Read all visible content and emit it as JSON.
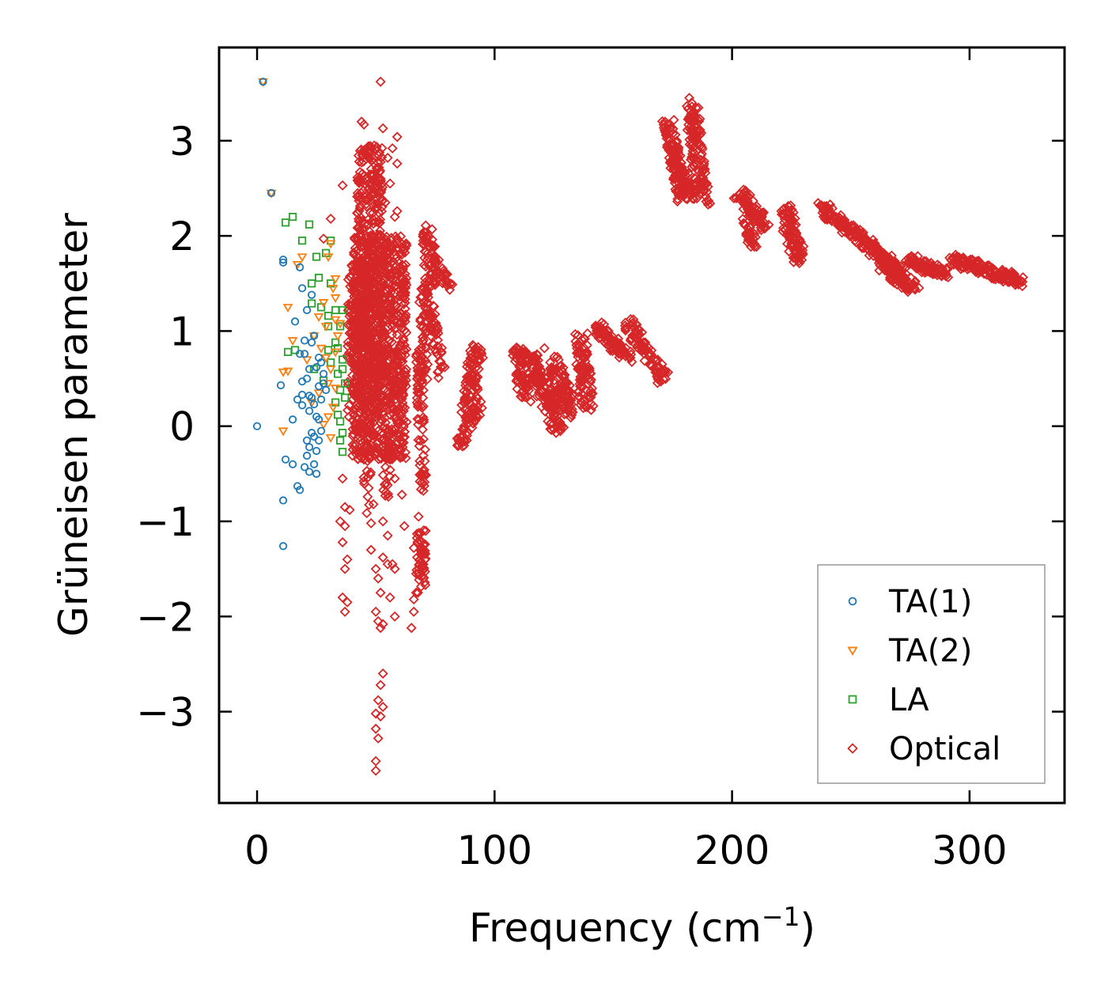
{
  "chart_data": {
    "type": "scatter",
    "title": "",
    "xlabel": "Frequency (cm",
    "xlabel_sup": "−1",
    "xlabel_suffix": ")",
    "ylabel": "Grüneisen parameter",
    "xlim": [
      -16,
      340
    ],
    "ylim": [
      -3.96,
      3.98
    ],
    "xticks": [
      0,
      100,
      200,
      300
    ],
    "xtick_labels": [
      "0",
      "100",
      "200",
      "300"
    ],
    "yticks": [
      -3,
      -2,
      -1,
      0,
      1,
      2,
      3
    ],
    "ytick_labels": [
      "−3",
      "−2",
      "−1",
      "0",
      "1",
      "2",
      "3"
    ],
    "legend_position": "lower-right",
    "series": [
      {
        "name": "TA(1)",
        "marker": "circle",
        "color": "#1f77b4",
        "points": [
          [
            2.5,
            3.62
          ],
          [
            6,
            2.45
          ],
          [
            0,
            0
          ],
          [
            11,
            1.75
          ],
          [
            11,
            1.72
          ],
          [
            16,
            1.1
          ],
          [
            18,
            1.67
          ],
          [
            19,
            1.45
          ],
          [
            21,
            1.22
          ],
          [
            23,
            1.38
          ],
          [
            15,
            0.07
          ],
          [
            10,
            0.43
          ],
          [
            11,
            -0.78
          ],
          [
            11,
            -1.26
          ],
          [
            12,
            -0.35
          ],
          [
            15,
            -0.4
          ],
          [
            17,
            -0.63
          ],
          [
            18,
            -0.67
          ],
          [
            17,
            0.28
          ],
          [
            19,
            0.22
          ],
          [
            19,
            0.47
          ],
          [
            21,
            0.5
          ],
          [
            22,
            0.32
          ],
          [
            22,
            0.16
          ],
          [
            23,
            -0.07
          ],
          [
            21,
            -0.15
          ],
          [
            21,
            -0.31
          ],
          [
            22,
            -0.48
          ],
          [
            25,
            -0.5
          ],
          [
            24,
            -0.4
          ],
          [
            25,
            -0.26
          ],
          [
            26,
            -0.15
          ],
          [
            25,
            0.1
          ],
          [
            27,
            0.28
          ],
          [
            28,
            0.45
          ],
          [
            26,
            0.72
          ],
          [
            24,
            0.95
          ],
          [
            22,
            0.6
          ],
          [
            20,
            0.76
          ],
          [
            23,
            0.88
          ],
          [
            25,
            0.62
          ],
          [
            20,
            -0.43
          ],
          [
            28,
            0.55
          ],
          [
            24,
            0.23
          ],
          [
            26,
            0.42
          ],
          [
            23,
            0.3
          ],
          [
            26,
            0.07
          ],
          [
            27,
            -0.05
          ],
          [
            22,
            -0.22
          ],
          [
            24,
            -0.11
          ],
          [
            19,
            0.33
          ],
          [
            29,
            0.38
          ],
          [
            20,
            0.9
          ],
          [
            18,
            0.76
          ],
          [
            27,
            0.67
          ]
        ]
      },
      {
        "name": "TA(2)",
        "marker": "triangle-down",
        "color": "#ff7f0e",
        "points": [
          [
            2.5,
            3.62
          ],
          [
            6,
            2.45
          ],
          [
            17,
            1.7
          ],
          [
            19,
            1.78
          ],
          [
            13,
            1.25
          ],
          [
            15,
            0.9
          ],
          [
            11,
            0.57
          ],
          [
            13,
            0.58
          ],
          [
            11,
            -0.05
          ],
          [
            21,
            0.7
          ],
          [
            24,
            0.95
          ],
          [
            26,
            1.15
          ],
          [
            28,
            1.3
          ],
          [
            30,
            1.78
          ],
          [
            31,
            1.92
          ],
          [
            33,
            1.55
          ],
          [
            33,
            1.35
          ],
          [
            33,
            1.12
          ],
          [
            34,
            0.95
          ],
          [
            33,
            0.78
          ],
          [
            31,
            0.6
          ],
          [
            33,
            0.4
          ],
          [
            32,
            0.2
          ],
          [
            30,
            0.1
          ],
          [
            31,
            -0.12
          ],
          [
            28,
            0.02
          ],
          [
            26,
            0.35
          ],
          [
            23,
            0.25
          ],
          [
            27,
            0.82
          ],
          [
            29,
            1.05
          ],
          [
            32,
            1.45
          ],
          [
            35,
            1.08
          ],
          [
            30,
            0.45
          ],
          [
            29,
            0.72
          ]
        ]
      },
      {
        "name": "LA",
        "marker": "square",
        "color": "#2ca02c",
        "points": [
          [
            12,
            2.14
          ],
          [
            15,
            2.2
          ],
          [
            22,
            2.12
          ],
          [
            19,
            1.95
          ],
          [
            25,
            1.78
          ],
          [
            26,
            1.56
          ],
          [
            23,
            1.5
          ],
          [
            13,
            0.78
          ],
          [
            16,
            0.8
          ],
          [
            23,
            1.29
          ],
          [
            27,
            1.25
          ],
          [
            30,
            1.05
          ],
          [
            33,
            1.22
          ],
          [
            36,
            1.22
          ],
          [
            35,
            1.05
          ],
          [
            33,
            0.88
          ],
          [
            36,
            0.7
          ],
          [
            34,
            0.55
          ],
          [
            35,
            0.38
          ],
          [
            33,
            0.25
          ],
          [
            34,
            0.12
          ],
          [
            36,
            -0.07
          ],
          [
            35,
            -0.15
          ],
          [
            36,
            -0.27
          ],
          [
            28,
            0.48
          ],
          [
            24,
            0.6
          ],
          [
            30,
            0.8
          ],
          [
            37,
            0.45
          ],
          [
            36,
            0.6
          ],
          [
            31,
            1.5
          ],
          [
            29,
            1.82
          ],
          [
            31,
            1.95
          ],
          [
            30,
            1.16
          ],
          [
            31,
            0.67
          ],
          [
            34,
            0.82
          ],
          [
            37,
            0.3
          ],
          [
            35,
            0.05
          ]
        ]
      },
      {
        "name": "Optical",
        "marker": "diamond",
        "color": "#d62728",
        "generator": "bands",
        "explicit_points": [
          [
            52,
            3.62
          ],
          [
            44,
            3.2
          ],
          [
            45,
            3.17
          ],
          [
            53,
            3.13
          ],
          [
            55,
            2.82
          ],
          [
            57,
            2.92
          ],
          [
            59,
            3.04
          ],
          [
            59,
            2.76
          ],
          [
            56,
            2.55
          ],
          [
            59,
            2.26
          ],
          [
            36,
            2.53
          ],
          [
            31,
            2.18
          ],
          [
            28,
            1.97
          ],
          [
            45,
            2.9
          ],
          [
            43,
            2.78
          ],
          [
            47,
            2.55
          ],
          [
            52,
            2.6
          ],
          [
            54,
            2.35
          ],
          [
            58,
            2.2
          ],
          [
            63,
            1.9
          ],
          [
            36,
            -0.55
          ],
          [
            37,
            -0.85
          ],
          [
            39,
            -0.88
          ],
          [
            35,
            -1.0
          ],
          [
            37,
            -1.05
          ],
          [
            36,
            -1.22
          ],
          [
            38,
            -1.4
          ],
          [
            37,
            -1.5
          ],
          [
            38,
            -1.85
          ],
          [
            36,
            -1.8
          ],
          [
            37,
            -1.95
          ],
          [
            47,
            -0.65
          ],
          [
            49,
            -0.82
          ],
          [
            48,
            -1.3
          ],
          [
            50,
            -1.5
          ],
          [
            51,
            -1.6
          ],
          [
            52,
            -1.75
          ],
          [
            50,
            -1.95
          ],
          [
            51,
            -2.05
          ],
          [
            52,
            -2.12
          ],
          [
            53,
            -2.08
          ],
          [
            55,
            -1.45
          ],
          [
            57,
            -1.45
          ],
          [
            58,
            -1.5
          ],
          [
            53,
            -2.6
          ],
          [
            52,
            -2.72
          ],
          [
            51,
            -2.88
          ],
          [
            53,
            -2.95
          ],
          [
            50,
            -3.02
          ],
          [
            52,
            -3.05
          ],
          [
            50,
            -3.18
          ],
          [
            51,
            -3.28
          ],
          [
            50,
            -3.52
          ],
          [
            50,
            -3.62
          ],
          [
            48,
            -1.02
          ],
          [
            53,
            -1.0
          ],
          [
            55,
            -1.15
          ],
          [
            53,
            -1.38
          ],
          [
            56,
            -1.8
          ],
          [
            58,
            -2.0
          ],
          [
            45,
            -0.35
          ],
          [
            48,
            -0.2
          ],
          [
            56,
            -0.35
          ],
          [
            58,
            -0.55
          ],
          [
            61,
            -0.72
          ],
          [
            62,
            -1.05
          ],
          [
            55,
            -0.62
          ],
          [
            65,
            -2.12
          ],
          [
            66,
            -1.95
          ],
          [
            66,
            -1.82
          ],
          [
            67,
            -1.75
          ],
          [
            70,
            -1.6
          ],
          [
            69,
            -1.35
          ],
          [
            71,
            -1.1
          ],
          [
            68,
            -0.95
          ],
          [
            69,
            -1.22
          ],
          [
            70,
            -1.45
          ],
          [
            67,
            -1.55
          ],
          [
            66,
            -1.28
          ],
          [
            121,
            0.82
          ],
          [
            170,
            0.47
          ],
          [
            320,
            1.53
          ],
          [
            182,
            3.45
          ],
          [
            183,
            3.4
          ]
        ],
        "bands": [
          {
            "xmin": 40,
            "xmax": 63,
            "ymin": -0.35,
            "ymax": 2.0,
            "n": 900
          },
          {
            "xmin": 42,
            "xmax": 53,
            "ymin": 0.3,
            "ymax": 2.95,
            "n": 380
          },
          {
            "xmin": 38,
            "xmax": 48,
            "ymin": 0.0,
            "ymax": 1.7,
            "n": 180
          },
          {
            "x0": 47,
            "y0": -0.1,
            "x1": 46,
            "y1": -0.9,
            "w": 3,
            "n": 18
          },
          {
            "x0": 55,
            "y0": -0.2,
            "x1": 54,
            "y1": -0.8,
            "w": 3,
            "n": 16
          },
          {
            "x0": 68,
            "y0": 0.8,
            "x1": 70,
            "y1": -0.7,
            "w": 3,
            "n": 70
          },
          {
            "x0": 69,
            "y0": -1.1,
            "x1": 69,
            "y1": -1.7,
            "w": 4,
            "n": 50
          },
          {
            "x0": 72,
            "y0": 2.08,
            "x1": 73,
            "y1": 1.45,
            "w": 5,
            "n": 60
          },
          {
            "x0": 70,
            "y0": 1.5,
            "x1": 70,
            "y1": 0.5,
            "w": 4,
            "n": 60
          },
          {
            "x0": 73,
            "y0": 1.3,
            "x1": 78,
            "y1": 0.5,
            "w": 4,
            "n": 50
          },
          {
            "x0": 76,
            "y0": 1.7,
            "x1": 81,
            "y1": 1.45,
            "w": 3,
            "n": 30
          },
          {
            "x0": 85,
            "y0": -0.2,
            "x1": 95,
            "y1": 0.3,
            "w": 3,
            "n": 50
          },
          {
            "x0": 88,
            "y0": 0.1,
            "x1": 93,
            "y1": 0.85,
            "w": 6,
            "n": 90
          },
          {
            "x0": 110,
            "y0": 0.82,
            "x1": 113,
            "y1": 0.3,
            "w": 6,
            "n": 70
          },
          {
            "x0": 115,
            "y0": 0.75,
            "x1": 127,
            "y1": -0.05,
            "w": 6,
            "n": 130
          },
          {
            "x0": 125,
            "y0": 0.7,
            "x1": 132,
            "y1": 0.1,
            "w": 6,
            "n": 90
          },
          {
            "x0": 136,
            "y0": 0.95,
            "x1": 139,
            "y1": 0.2,
            "w": 6,
            "n": 90
          },
          {
            "x0": 143,
            "y0": 1.05,
            "x1": 156,
            "y1": 0.72,
            "w": 5,
            "n": 80
          },
          {
            "x0": 156,
            "y0": 1.1,
            "x1": 171,
            "y1": 0.5,
            "w": 5,
            "n": 90
          },
          {
            "x0": 173,
            "y0": 3.2,
            "x1": 179,
            "y1": 2.38,
            "w": 5,
            "n": 120
          },
          {
            "x0": 178,
            "y0": 2.7,
            "x1": 183,
            "y1": 2.4,
            "w": 4,
            "n": 50
          },
          {
            "x0": 183,
            "y0": 3.35,
            "x1": 188,
            "y1": 2.35,
            "w": 6,
            "n": 130
          },
          {
            "x0": 203,
            "y0": 2.45,
            "x1": 214,
            "y1": 2.1,
            "w": 5,
            "n": 90
          },
          {
            "x0": 205,
            "y0": 2.15,
            "x1": 209,
            "y1": 1.9,
            "w": 4,
            "n": 30
          },
          {
            "x0": 222,
            "y0": 2.3,
            "x1": 228,
            "y1": 1.75,
            "w": 6,
            "n": 100
          },
          {
            "x0": 238,
            "y0": 2.3,
            "x1": 260,
            "y1": 1.85,
            "w": 5,
            "n": 120
          },
          {
            "x0": 258,
            "y0": 1.88,
            "x1": 272,
            "y1": 1.6,
            "w": 5,
            "n": 80
          },
          {
            "x0": 264,
            "y0": 1.7,
            "x1": 276,
            "y1": 1.45,
            "w": 6,
            "n": 90
          },
          {
            "x0": 274,
            "y0": 1.75,
            "x1": 290,
            "y1": 1.6,
            "w": 5,
            "n": 90
          },
          {
            "x0": 293,
            "y0": 1.75,
            "x1": 322,
            "y1": 1.52,
            "w": 4,
            "n": 150
          }
        ]
      }
    ]
  }
}
